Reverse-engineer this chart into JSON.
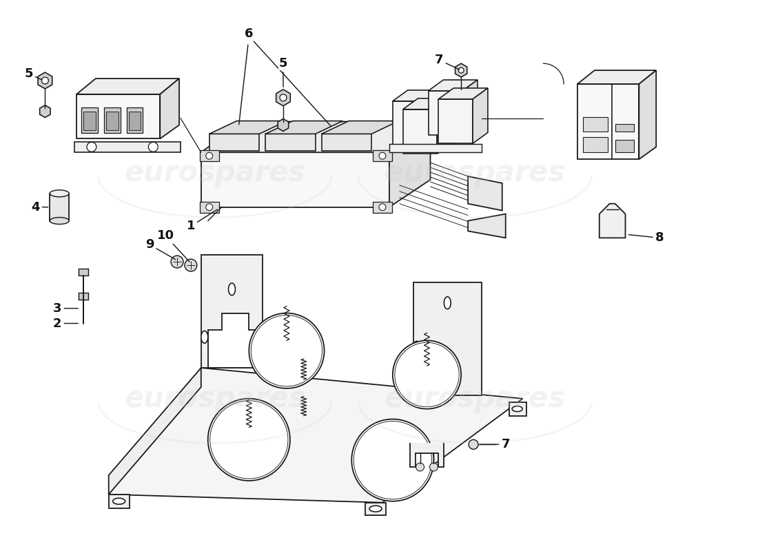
{
  "bg_color": "#ffffff",
  "line_color": "#1a1a1a",
  "watermark_color": "#c8c8c8",
  "watermark_text": "eurospares",
  "label_color": "#111111",
  "figsize": [
    11.0,
    8.0
  ],
  "dpi": 100
}
